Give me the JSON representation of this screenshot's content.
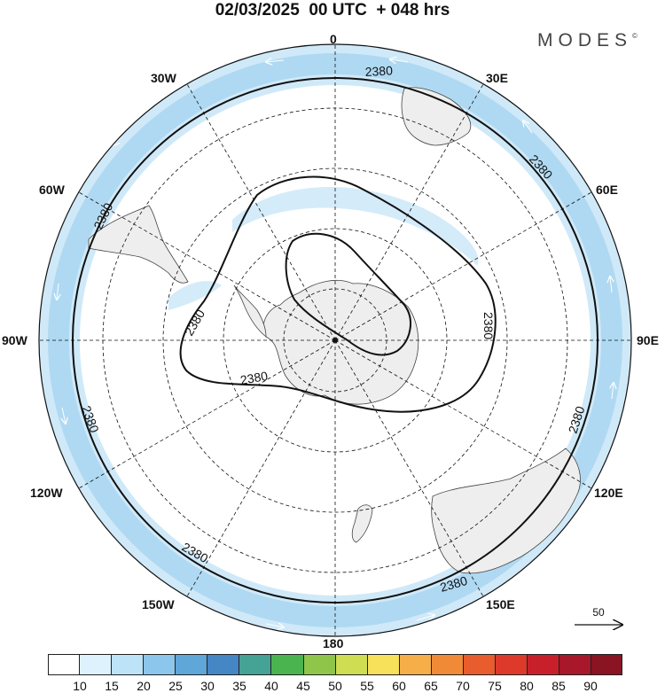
{
  "header": {
    "title": "02/03/2025  00 UTC  + 048 hrs",
    "brand": "MODES",
    "brand_mark": "©"
  },
  "map": {
    "projection": "south polar stereographic",
    "longitude_labels": [
      "0",
      "30E",
      "60E",
      "90E",
      "120E",
      "150E",
      "180",
      "150W",
      "120W",
      "90W",
      "60W",
      "30W"
    ],
    "contours": [
      {
        "level": "2380",
        "region": "polar low around Antarctica"
      },
      {
        "level": "2380",
        "region": "outer ring near map edge"
      }
    ],
    "land_color": "#eeeeee",
    "ocean_color": "#ffffff"
  },
  "vector_scale": {
    "value": "50"
  },
  "colorbar": {
    "labels": [
      "10",
      "15",
      "20",
      "25",
      "30",
      "35",
      "40",
      "45",
      "50",
      "55",
      "60",
      "65",
      "70",
      "75",
      "80",
      "85",
      "90"
    ],
    "colors": [
      "#ffffff",
      "#ddf2fd",
      "#bde3f9",
      "#8cc6ec",
      "#5fa6d9",
      "#4586c4",
      "#44a394",
      "#4ab44f",
      "#8fc64a",
      "#cedd52",
      "#f7e05a",
      "#f6ae48",
      "#f08a37",
      "#e85c2d",
      "#dd3a2c",
      "#c8202a",
      "#a8172a",
      "#8a1421"
    ]
  }
}
